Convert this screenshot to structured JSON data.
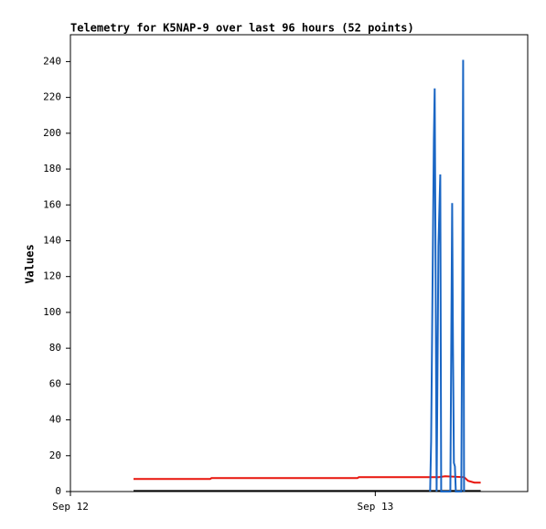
{
  "chart_data": {
    "type": "line",
    "title": "Telemetry for K5NAP-9 over last 96 hours (52 points)",
    "y_label": "Values",
    "xlim": [
      0,
      36
    ],
    "xticks": [
      {
        "value": 0,
        "label": "Sep 12"
      },
      {
        "value": 24,
        "label": "Sep 13"
      }
    ],
    "ylim": [
      0,
      255
    ],
    "yticks": [
      0,
      20,
      40,
      60,
      80,
      100,
      120,
      140,
      160,
      180,
      200,
      220,
      240
    ],
    "series": [
      {
        "color": "#e8140c",
        "x": [
          4.97,
          11.0,
          11.1,
          22.6,
          22.7,
          29.0,
          29.5,
          31.0,
          31.3,
          31.8,
          32.3
        ],
        "values": [
          7,
          7,
          7.5,
          7.5,
          8,
          8,
          8.5,
          8,
          6,
          5,
          5
        ]
      },
      {
        "color": "#000000",
        "x": [
          4.97,
          32.3
        ],
        "values": [
          0.3,
          0.3
        ]
      },
      {
        "color": "#1a66c4",
        "x": [
          28.32,
          28.4,
          28.47,
          28.54,
          28.61,
          28.68,
          28.76,
          28.83,
          28.97,
          29.12,
          29.19,
          29.91,
          29.98,
          30.05,
          30.12,
          30.19,
          30.27,
          30.34,
          30.77,
          30.85,
          30.92,
          30.99
        ],
        "values": [
          0,
          28,
          84,
          141,
          197,
          225,
          113,
          0,
          137,
          177,
          0,
          0,
          80,
          161,
          80,
          16,
          14,
          0,
          0,
          121,
          241,
          0
        ]
      }
    ]
  }
}
